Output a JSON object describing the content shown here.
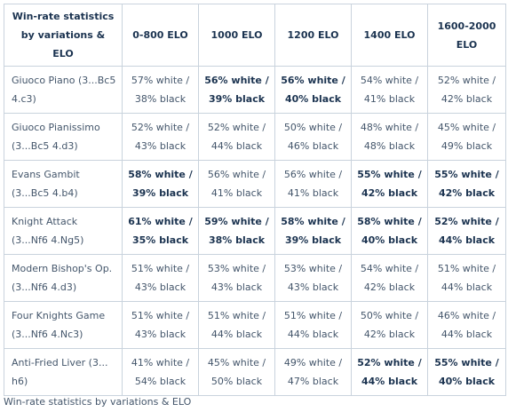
{
  "table": {
    "header": [
      "Win-rate statistics by variations & ELO",
      "0-800 ELO",
      "1000 ELO",
      "1200 ELO",
      "1400 ELO",
      "1600-2000 ELO"
    ],
    "rows": [
      {
        "variation": "Giuoco Piano (3...Bc5 4.c3)",
        "cells": [
          {
            "text": "57% white / 38% black",
            "highlight": false
          },
          {
            "text": "56% white / 39% black",
            "highlight": true
          },
          {
            "text": "56% white / 40% black",
            "highlight": true
          },
          {
            "text": "54% white / 41% black",
            "highlight": false
          },
          {
            "text": "52% white / 42% black",
            "highlight": false
          }
        ]
      },
      {
        "variation": "Giuoco Pianissimo (3...Bc5 4.d3)",
        "cells": [
          {
            "text": "52% white / 43% black",
            "highlight": false
          },
          {
            "text": "52% white / 44% black",
            "highlight": false
          },
          {
            "text": "50% white / 46% black",
            "highlight": false
          },
          {
            "text": "48% white / 48% black",
            "highlight": false
          },
          {
            "text": "45% white / 49% black",
            "highlight": false
          }
        ]
      },
      {
        "variation": "Evans Gambit (3...Bc5 4.b4)",
        "cells": [
          {
            "text": "58% white / 39% black",
            "highlight": true
          },
          {
            "text": "56% white / 41% black",
            "highlight": false
          },
          {
            "text": "56% white / 41% black",
            "highlight": false
          },
          {
            "text": "55% white / 42% black",
            "highlight": true
          },
          {
            "text": "55% white / 42% black",
            "highlight": true
          }
        ]
      },
      {
        "variation": "Knight Attack (3...Nf6 4.Ng5)",
        "cells": [
          {
            "text": "61% white / 35% black",
            "highlight": true
          },
          {
            "text": "59% white / 38% black",
            "highlight": true
          },
          {
            "text": "58% white / 39% black",
            "highlight": true
          },
          {
            "text": "58% white / 40% black",
            "highlight": true
          },
          {
            "text": "52% white / 44% black",
            "highlight": true
          }
        ]
      },
      {
        "variation": "Modern Bishop's Op. (3...Nf6 4.d3)",
        "cells": [
          {
            "text": "51% white / 43% black",
            "highlight": false
          },
          {
            "text": "53% white / 43% black",
            "highlight": false
          },
          {
            "text": "53% white / 43% black",
            "highlight": false
          },
          {
            "text": "54% white / 42% black",
            "highlight": false
          },
          {
            "text": "51% white / 44% black",
            "highlight": false
          }
        ]
      },
      {
        "variation": "Four Knights Game (3...Nf6 4.Nc3)",
        "cells": [
          {
            "text": "51% white / 43% black",
            "highlight": false
          },
          {
            "text": "51% white / 44% black",
            "highlight": false
          },
          {
            "text": "51% white / 44% black",
            "highlight": false
          },
          {
            "text": "50% white / 42% black",
            "highlight": false
          },
          {
            "text": "46% white / 44% black",
            "highlight": false
          }
        ]
      },
      {
        "variation": "Anti-Fried Liver (3... h6)",
        "cells": [
          {
            "text": "41% white / 54% black",
            "highlight": false
          },
          {
            "text": "45% white / 50% black",
            "highlight": false
          },
          {
            "text": "49% white / 47% black",
            "highlight": false
          },
          {
            "text": "52% white / 44% black",
            "highlight": true
          },
          {
            "text": "55% white / 40% black",
            "highlight": true
          }
        ]
      }
    ]
  },
  "caption": "Win-rate statistics by variations & ELO"
}
